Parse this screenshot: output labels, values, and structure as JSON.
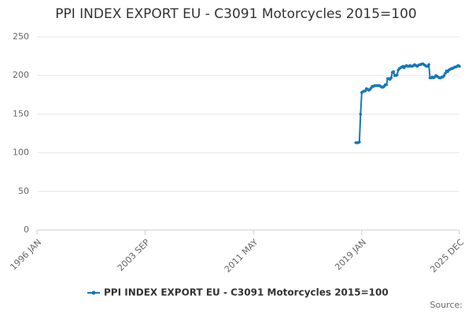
{
  "chart_data": {
    "type": "line",
    "title": "PPI INDEX EXPORT EU - C3091 Motorcycles 2015=100",
    "source": "Source:",
    "x": [
      "2018-08",
      "2018-09",
      "2018-10",
      "2018-11",
      "2018-12",
      "2019-01",
      "2019-02",
      "2019-03",
      "2019-04",
      "2019-05",
      "2019-06",
      "2019-07",
      "2019-08",
      "2019-09",
      "2019-10",
      "2019-11",
      "2019-12",
      "2020-01",
      "2020-02",
      "2020-03",
      "2020-04",
      "2020-05",
      "2020-06",
      "2020-07",
      "2020-08",
      "2020-09",
      "2020-10",
      "2020-11",
      "2020-12",
      "2021-01",
      "2021-02",
      "2021-03",
      "2021-04",
      "2021-05",
      "2021-06",
      "2021-07",
      "2021-08",
      "2021-09",
      "2021-10",
      "2021-11",
      "2021-12",
      "2022-01",
      "2022-02",
      "2022-03",
      "2022-04",
      "2022-05",
      "2022-06",
      "2022-07",
      "2022-08",
      "2022-09",
      "2022-10",
      "2022-11",
      "2022-12",
      "2023-01",
      "2023-02",
      "2023-03",
      "2023-04",
      "2023-05",
      "2023-06",
      "2023-07",
      "2023-08",
      "2023-09",
      "2023-10",
      "2023-11",
      "2023-12",
      "2024-01",
      "2024-02",
      "2024-03",
      "2024-04",
      "2024-05",
      "2024-06",
      "2024-07",
      "2024-08",
      "2024-09",
      "2024-10",
      "2024-11",
      "2024-12",
      "2025-01",
      "2025-02",
      "2025-03",
      "2025-04",
      "2025-05",
      "2025-06",
      "2025-07",
      "2025-08",
      "2025-09",
      "2025-10",
      "2025-11",
      "2025-12"
    ],
    "series": [
      {
        "name": "PPI INDEX EXPORT EU - C3091 Motorcycles 2015=100",
        "color": "#1478b8",
        "values": [
          113,
          113,
          113,
          114,
          150,
          178,
          179,
          180,
          180,
          183,
          182,
          181,
          182,
          184,
          186,
          186,
          187,
          187,
          187,
          187,
          187,
          186,
          185,
          185,
          186,
          188,
          188,
          196,
          196,
          195,
          197,
          204,
          205,
          200,
          200,
          201,
          207,
          209,
          210,
          211,
          212,
          210,
          212,
          213,
          212,
          212,
          213,
          212,
          212,
          213,
          214,
          213,
          212,
          213,
          214,
          214,
          215,
          215,
          214,
          213,
          212,
          212,
          214,
          197,
          197,
          198,
          197,
          198,
          200,
          199,
          198,
          197,
          197,
          198,
          198,
          200,
          203,
          206,
          205,
          207,
          208,
          209,
          209,
          210,
          211,
          211,
          212,
          213,
          212
        ]
      }
    ],
    "xlim": [
      "1996-01",
      "2025-12"
    ],
    "xticks": [
      {
        "value": "1996-01",
        "label": "1996 JAN"
      },
      {
        "value": "2003-09",
        "label": "2003 SEP"
      },
      {
        "value": "2011-05",
        "label": "2011 MAY"
      },
      {
        "value": "2019-01",
        "label": "2019 JAN"
      },
      {
        "value": "2025-12",
        "label": "2025 DEC"
      }
    ],
    "ylim": [
      0,
      250
    ],
    "yticks": [
      0,
      50,
      100,
      150,
      200,
      250
    ],
    "grid": true,
    "legend": "bottom"
  }
}
